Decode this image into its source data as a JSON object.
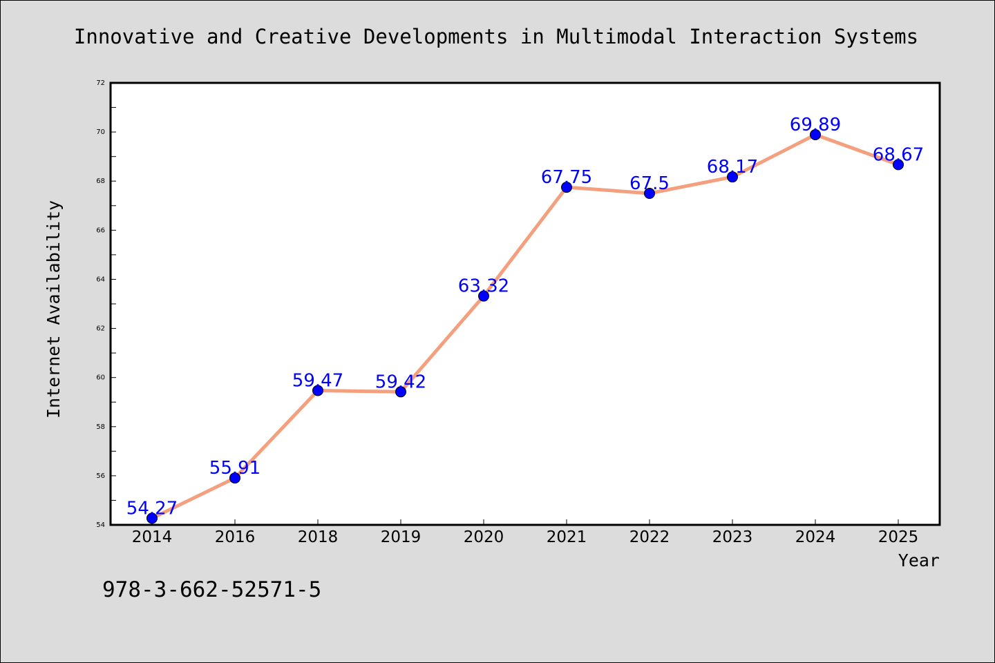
{
  "chart_data": {
    "type": "line",
    "title": "Innovative and Creative Developments in Multimodal Interaction Systems",
    "xlabel": "Year",
    "ylabel": "Internet Availability",
    "categories": [
      "2014",
      "2016",
      "2018",
      "2019",
      "2020",
      "2021",
      "2022",
      "2023",
      "2024",
      "2025"
    ],
    "values": [
      54.27,
      55.91,
      59.47,
      59.42,
      63.32,
      67.75,
      67.5,
      68.17,
      69.89,
      68.67
    ],
    "data_labels": [
      "54.27",
      "55.91",
      "59.47",
      "59.42",
      "63.32",
      "67.75",
      "67.5",
      "68.17",
      "69.89",
      "68.67"
    ],
    "ylim": [
      54,
      72
    ],
    "yticks": [
      54,
      56,
      58,
      60,
      62,
      64,
      66,
      68,
      70,
      72
    ],
    "ytick_labels": [
      "54",
      "56",
      "58",
      "60",
      "62",
      "64",
      "66",
      "68",
      "70",
      "72"
    ],
    "grid": false,
    "legend": "none",
    "colors": {
      "background": "#dcdcdc",
      "plot_area": "#ffffff",
      "line": "#f4a07f",
      "marker": "#0000ff",
      "data_label": "#0000ff",
      "text": "#000000"
    }
  },
  "footer_text": "978-3-662-52571-5"
}
